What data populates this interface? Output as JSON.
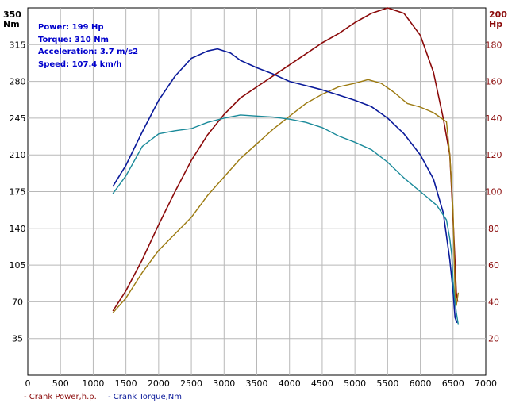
{
  "info": {
    "power": "Power: 199 Hp",
    "torque": "Torque: 310 Nm",
    "acceleration": "Acceleration: 3.7 m/s2",
    "speed": "Speed: 107.4 km/h"
  },
  "legend": {
    "power": "- Crank Power,h.p.",
    "torque": "- Crank Torque,Nm"
  },
  "colors": {
    "power_measured": "#8b0a0a",
    "power_secondary": "#9c7a10",
    "torque_measured": "#0a1a9a",
    "torque_secondary": "#1a8a9a",
    "grid": "#b8b8b8",
    "info_text": "#0000cc"
  },
  "chart_data": {
    "type": "line",
    "grid": true,
    "legend_position": "bottom-left",
    "x_axis": {
      "range": [
        0,
        7000
      ],
      "ticks": [
        0,
        500,
        1000,
        1500,
        2000,
        2500,
        3000,
        3500,
        4000,
        4500,
        5000,
        5500,
        6000,
        6500,
        7000
      ]
    },
    "y_left": {
      "unit": "Nm",
      "range": [
        0,
        350
      ],
      "ticks": [
        35,
        70,
        105,
        140,
        175,
        210,
        245,
        280,
        315,
        350
      ]
    },
    "y_right": {
      "unit": "Hp",
      "range": [
        0,
        200
      ],
      "ticks": [
        20,
        40,
        60,
        80,
        100,
        120,
        140,
        160,
        180,
        200
      ]
    },
    "series": [
      {
        "axis": "right",
        "color": "#8b0a0a",
        "width": 1.6,
        "points": [
          [
            1300,
            35
          ],
          [
            1500,
            46
          ],
          [
            1750,
            63
          ],
          [
            2000,
            82
          ],
          [
            2250,
            100
          ],
          [
            2500,
            117
          ],
          [
            2750,
            131
          ],
          [
            3000,
            142
          ],
          [
            3250,
            151
          ],
          [
            3500,
            157
          ],
          [
            3750,
            163
          ],
          [
            4000,
            169
          ],
          [
            4250,
            175
          ],
          [
            4500,
            181
          ],
          [
            4750,
            186
          ],
          [
            5000,
            192
          ],
          [
            5250,
            197
          ],
          [
            5500,
            200
          ],
          [
            5750,
            197
          ],
          [
            6000,
            185
          ],
          [
            6200,
            165
          ],
          [
            6350,
            140
          ],
          [
            6450,
            120
          ],
          [
            6480,
            100
          ],
          [
            6500,
            85
          ],
          [
            6520,
            70
          ],
          [
            6550,
            45
          ],
          [
            6570,
            40
          ]
        ]
      },
      {
        "axis": "right",
        "color": "#9c7a10",
        "width": 1.4,
        "points": [
          [
            1300,
            34
          ],
          [
            1500,
            42
          ],
          [
            1750,
            56
          ],
          [
            2000,
            68
          ],
          [
            2250,
            77
          ],
          [
            2500,
            86
          ],
          [
            2750,
            98
          ],
          [
            3000,
            108
          ],
          [
            3250,
            118
          ],
          [
            3500,
            126
          ],
          [
            3750,
            134
          ],
          [
            4000,
            141
          ],
          [
            4250,
            148
          ],
          [
            4500,
            153
          ],
          [
            4750,
            157
          ],
          [
            5000,
            159
          ],
          [
            5200,
            161
          ],
          [
            5400,
            159
          ],
          [
            5600,
            154
          ],
          [
            5800,
            148
          ],
          [
            6000,
            146
          ],
          [
            6200,
            143
          ],
          [
            6400,
            138
          ],
          [
            6450,
            120
          ],
          [
            6500,
            90
          ],
          [
            6530,
            45
          ],
          [
            6550,
            38
          ],
          [
            6580,
            45
          ]
        ]
      },
      {
        "axis": "left",
        "color": "#0a1a9a",
        "width": 1.6,
        "points": [
          [
            1300,
            180
          ],
          [
            1500,
            200
          ],
          [
            1750,
            232
          ],
          [
            2000,
            262
          ],
          [
            2250,
            285
          ],
          [
            2500,
            302
          ],
          [
            2750,
            309
          ],
          [
            2900,
            311
          ],
          [
            3100,
            307
          ],
          [
            3250,
            300
          ],
          [
            3500,
            293
          ],
          [
            3750,
            287
          ],
          [
            4000,
            280
          ],
          [
            4250,
            276
          ],
          [
            4500,
            272
          ],
          [
            4750,
            267
          ],
          [
            5000,
            262
          ],
          [
            5250,
            256
          ],
          [
            5500,
            245
          ],
          [
            5750,
            230
          ],
          [
            6000,
            210
          ],
          [
            6200,
            187
          ],
          [
            6350,
            155
          ],
          [
            6450,
            110
          ],
          [
            6500,
            80
          ],
          [
            6530,
            55
          ],
          [
            6560,
            50
          ]
        ]
      },
      {
        "axis": "left",
        "color": "#1a8a9a",
        "width": 1.4,
        "points": [
          [
            1300,
            173
          ],
          [
            1500,
            190
          ],
          [
            1750,
            218
          ],
          [
            2000,
            230
          ],
          [
            2250,
            233
          ],
          [
            2500,
            235
          ],
          [
            2750,
            241
          ],
          [
            3000,
            245
          ],
          [
            3250,
            248
          ],
          [
            3500,
            247
          ],
          [
            3750,
            246
          ],
          [
            4000,
            244
          ],
          [
            4250,
            241
          ],
          [
            4500,
            236
          ],
          [
            4750,
            228
          ],
          [
            5000,
            222
          ],
          [
            5250,
            215
          ],
          [
            5500,
            203
          ],
          [
            5750,
            188
          ],
          [
            6000,
            175
          ],
          [
            6250,
            162
          ],
          [
            6400,
            148
          ],
          [
            6450,
            130
          ],
          [
            6480,
            115
          ],
          [
            6500,
            90
          ],
          [
            6520,
            75
          ],
          [
            6550,
            60
          ],
          [
            6580,
            48
          ]
        ]
      }
    ]
  }
}
